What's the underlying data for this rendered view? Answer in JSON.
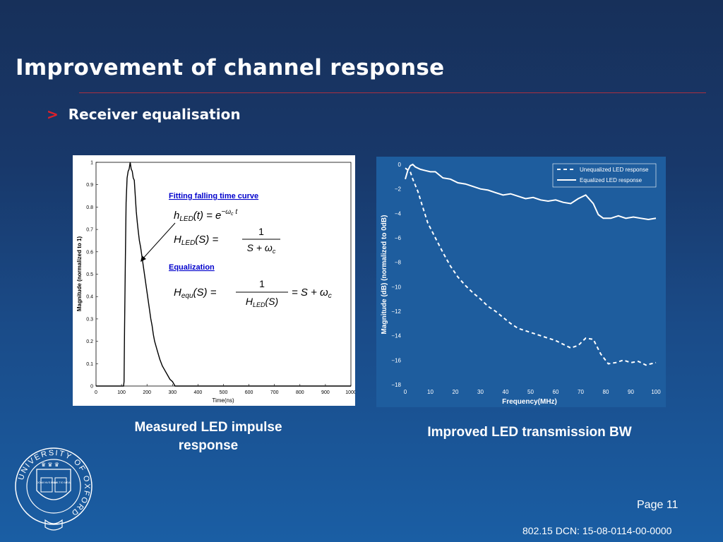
{
  "slide": {
    "title": "Improvement of channel response",
    "bullet_marker": ">",
    "bullet": "Receiver equalisation",
    "caption_left_line1": "Measured LED impulse",
    "caption_left_line2": "response",
    "caption_right": "Improved LED transmission BW",
    "page": "Page 11",
    "footer": "802.15 DCN: 15-08-0114-00-0000",
    "logo_ring_text": "UNIVERSITY OF OXFORD",
    "logo_book_text": [
      "DOMI NVS ILLV",
      "MINA TIO MEA"
    ]
  },
  "colors": {
    "background_top": "#17305a",
    "background_bottom": "#1a5ea4",
    "plot_left_bg": "#ffffff",
    "plot_right_bg": "#1e5d9e",
    "title_rule": "#a83040",
    "bullet_marker": "#e0202a"
  },
  "chart_data": [
    {
      "type": "line",
      "xlabel": "Time(ns)",
      "ylabel": "Magnitude (normalized to 1)",
      "xlim": [
        0,
        1000
      ],
      "ylim": [
        0,
        1
      ],
      "xticks": [
        0,
        100,
        200,
        300,
        400,
        500,
        600,
        700,
        800,
        900,
        1000
      ],
      "yticks": [
        0,
        0.1,
        0.2,
        0.3,
        0.4,
        0.5,
        0.6,
        0.7,
        0.8,
        0.9,
        1
      ],
      "grid": false,
      "x": [
        0,
        100,
        108,
        110,
        112,
        115,
        118,
        122,
        126,
        130,
        134,
        138,
        142,
        146,
        150,
        154,
        158,
        162,
        166,
        170,
        175,
        180,
        185,
        190,
        195,
        200,
        205,
        210,
        215,
        220,
        225,
        230,
        240,
        250,
        260,
        270,
        280,
        290,
        300,
        310,
        1000
      ],
      "y": [
        0,
        0,
        0,
        0.02,
        0.25,
        0.55,
        0.82,
        0.93,
        0.96,
        0.97,
        1.0,
        0.97,
        0.96,
        0.93,
        0.92,
        0.85,
        0.78,
        0.73,
        0.69,
        0.65,
        0.62,
        0.58,
        0.54,
        0.5,
        0.46,
        0.42,
        0.38,
        0.34,
        0.3,
        0.27,
        0.23,
        0.2,
        0.16,
        0.12,
        0.09,
        0.07,
        0.05,
        0.03,
        0.02,
        0,
        0
      ],
      "annotations": {
        "fit_heading": "Fitting falling time curve",
        "eq_h_led": "h_LED(t) = e^(−ω_c t)",
        "eq_H_led": "H_LED(S) = 1 / (S + ω_c)",
        "equalization_heading": "Equalization",
        "eq_H_equ": "H_equ(S) = 1 / H_LED(S) = S + ω_c"
      }
    },
    {
      "type": "line",
      "xlabel": "Frequency(MHz)",
      "ylabel": "Magnitude (dB) (normalized to 0dB)",
      "xlim": [
        0,
        100
      ],
      "ylim": [
        -18,
        0
      ],
      "xticks": [
        0,
        10,
        20,
        30,
        40,
        50,
        60,
        70,
        80,
        90,
        100
      ],
      "yticks": [
        0,
        -2,
        -4,
        -6,
        -8,
        -10,
        -12,
        -14,
        -16,
        -18
      ],
      "grid": false,
      "legend": "top-right",
      "series": [
        {
          "name": "Unequalized LED response",
          "style": "dashed",
          "x": [
            0,
            2,
            3,
            5,
            7,
            9,
            12,
            15,
            18,
            21,
            24,
            27,
            30,
            33,
            36,
            39,
            42,
            45,
            48,
            51,
            54,
            57,
            60,
            63,
            66,
            69,
            72,
            75,
            78,
            81,
            84,
            87,
            90,
            93,
            96,
            98,
            100
          ],
          "y": [
            -0.3,
            -0.6,
            -1.2,
            -2.2,
            -3.5,
            -4.8,
            -6.0,
            -7.2,
            -8.3,
            -9.2,
            -9.9,
            -10.5,
            -11.0,
            -11.6,
            -12.0,
            -12.5,
            -13.0,
            -13.4,
            -13.6,
            -13.8,
            -14.0,
            -14.2,
            -14.4,
            -14.7,
            -15.0,
            -14.8,
            -14.2,
            -14.3,
            -15.5,
            -16.3,
            -16.2,
            -16.0,
            -16.2,
            -16.1,
            -16.4,
            -16.3,
            -16.2
          ]
        },
        {
          "name": "Equalized LED response",
          "style": "solid",
          "x": [
            0,
            1,
            2,
            3,
            4,
            6,
            8,
            10,
            12,
            15,
            18,
            21,
            24,
            27,
            30,
            33,
            36,
            39,
            42,
            45,
            48,
            51,
            54,
            57,
            60,
            63,
            66,
            69,
            72,
            75,
            77,
            79,
            82,
            85,
            88,
            91,
            94,
            97,
            100
          ],
          "y": [
            -1.2,
            -0.5,
            -0.1,
            0,
            -0.2,
            -0.4,
            -0.5,
            -0.6,
            -0.6,
            -1.1,
            -1.2,
            -1.5,
            -1.6,
            -1.8,
            -2.0,
            -2.1,
            -2.3,
            -2.5,
            -2.4,
            -2.6,
            -2.8,
            -2.7,
            -2.9,
            -3.0,
            -2.9,
            -3.1,
            -3.2,
            -2.8,
            -2.5,
            -3.2,
            -4.1,
            -4.4,
            -4.4,
            -4.2,
            -4.4,
            -4.3,
            -4.4,
            -4.5,
            -4.4
          ]
        }
      ]
    }
  ]
}
